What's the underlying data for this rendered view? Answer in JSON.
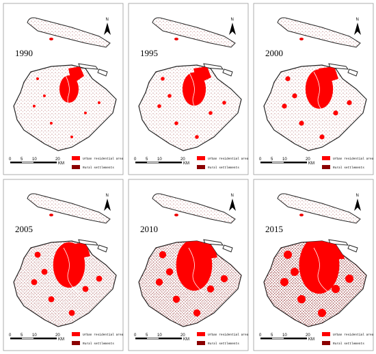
{
  "panels": [
    {
      "year": "1990"
    },
    {
      "year": "1995"
    },
    {
      "year": "2000"
    },
    {
      "year": "2005"
    },
    {
      "year": "2010"
    },
    {
      "year": "2015"
    }
  ],
  "north": "N",
  "scale_bar": {
    "ticks": [
      "0",
      "5",
      "10",
      "20"
    ],
    "unit": "KM"
  },
  "legend": {
    "urban": "Urban residential area",
    "rural": "Rural settlements"
  }
}
